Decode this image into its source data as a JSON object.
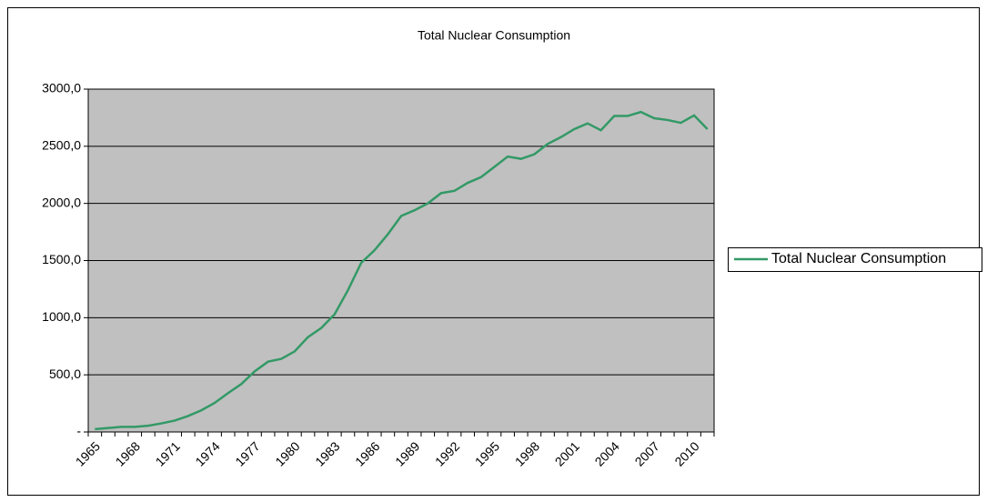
{
  "chart_data": {
    "type": "line",
    "title": "Total Nuclear Consumption",
    "categories": [
      "1965",
      null,
      null,
      "1968",
      null,
      null,
      "1971",
      null,
      null,
      "1974",
      null,
      null,
      "1977",
      null,
      null,
      "1980",
      null,
      null,
      "1983",
      null,
      null,
      "1986",
      null,
      null,
      "1989",
      null,
      null,
      "1992",
      null,
      null,
      "1995",
      null,
      null,
      "1998",
      null,
      null,
      "2001",
      null,
      null,
      "2004",
      null,
      null,
      "2007",
      null,
      null,
      "2010",
      null
    ],
    "series": [
      {
        "name": "Total Nuclear Consumption",
        "color": "#339966",
        "values": [
          25,
          35,
          45,
          45,
          55,
          75,
          100,
          140,
          190,
          255,
          340,
          420,
          530,
          615,
          640,
          705,
          830,
          910,
          1030,
          1240,
          1480,
          1590,
          1730,
          1890,
          1940,
          2000,
          2090,
          2110,
          2180,
          2230,
          2320,
          2410,
          2390,
          2430,
          2520,
          2580,
          2650,
          2700,
          2640,
          2765,
          2765,
          2800,
          2745,
          2730,
          2705,
          2770,
          2650
        ]
      }
    ],
    "ylim": [
      0,
      3000
    ],
    "yticks": [
      {
        "value": 0,
        "label": "-"
      },
      {
        "value": 500,
        "label": "500,0"
      },
      {
        "value": 1000,
        "label": "1000,0"
      },
      {
        "value": 1500,
        "label": "1500,0"
      },
      {
        "value": 2000,
        "label": "2000,0"
      },
      {
        "value": 2500,
        "label": "2500,0"
      },
      {
        "value": 3000,
        "label": "3000,0"
      }
    ],
    "grid": true,
    "legend": "right",
    "plot_background": "#c0c0c0"
  }
}
